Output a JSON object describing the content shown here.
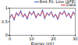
{
  "chart_data": {
    "type": "line",
    "x_label": "Energy (eV)",
    "x": [
      0,
      1,
      2,
      3,
      4,
      5,
      6,
      7,
      8,
      9,
      10,
      11,
      12,
      13,
      14,
      15,
      16,
      17,
      18,
      19,
      20,
      21,
      22,
      23,
      24,
      25,
      26,
      27,
      28,
      29,
      30
    ],
    "series": [
      {
        "name": "Rmt Fit. Line (XFE)",
        "color": "#3b5bdb",
        "values": [
          0.62,
          0.78,
          0.55,
          0.85,
          0.7,
          0.92,
          0.66,
          0.8,
          0.58,
          0.88,
          0.74,
          0.9,
          0.63,
          0.82,
          0.7,
          0.95,
          0.6,
          0.84,
          0.72,
          0.88,
          0.65,
          0.79,
          0.57,
          0.86,
          0.75,
          0.91,
          0.68,
          0.83,
          0.62,
          0.87,
          0.73
        ]
      },
      {
        "name": "Data",
        "color": "#e03131",
        "values": [
          0.68,
          0.74,
          0.6,
          0.8,
          0.76,
          0.86,
          0.7,
          0.76,
          0.64,
          0.84,
          0.78,
          0.85,
          0.67,
          0.78,
          0.74,
          0.9,
          0.65,
          0.8,
          0.76,
          0.84,
          0.69,
          0.75,
          0.62,
          0.82,
          0.78,
          0.87,
          0.71,
          0.79,
          0.66,
          0.83,
          0.76
        ]
      }
    ],
    "xlim": [
      0,
      30
    ],
    "xticks": [
      0,
      10,
      20,
      30
    ],
    "ylim": [
      0,
      1
    ],
    "yticks": [
      0,
      0.5,
      1
    ],
    "legend": "top-right"
  }
}
